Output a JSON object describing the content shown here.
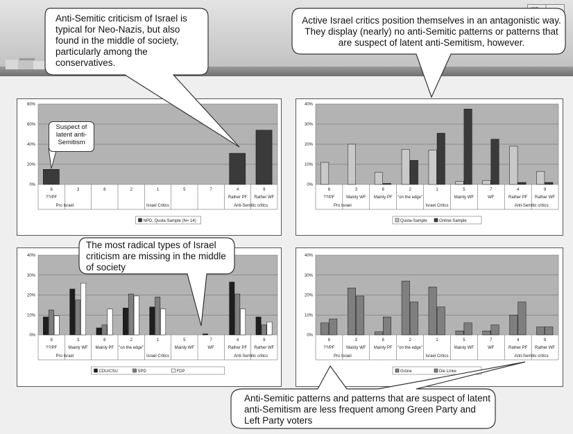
{
  "header": {
    "logo_text": "ISF"
  },
  "bubbles": {
    "b1": "Anti-Semitic criticism of Israel is typical for Neo-Nazis, but also found in the middle of society, particularly among  the conservatives.",
    "b2": "Active Israel critics position themselves in an antagonistic way. They display (nearly) no anti-Semitic patterns or patterns that  are suspect of latent anti-Semitism, however.",
    "b3": "The most radical types of Israel criticism are missing in the middle of society",
    "b4": "Anti-Semitic patterns and patterns that are suspect of latent anti-Semitism are less frequent among Green Party and Left Party voters"
  },
  "note": "Suspect of latent anti-Semitism",
  "colors": {
    "dark": "#3a3a3a",
    "mid": "#7f7f7f",
    "light": "#c9c9c9",
    "white": "#ffffff",
    "plot_bg": "#b3b3b3"
  },
  "chart_data": [
    {
      "type": "bar",
      "categories": [
        "6",
        "3",
        "8",
        "2",
        "1",
        "5",
        "7",
        "4",
        "9"
      ],
      "category_sublabels": [
        "??/PF",
        "",
        "",
        "",
        "",
        "",
        "",
        "Rather PF",
        "Rather WF"
      ],
      "groups": [
        "Pro Israel",
        "Israel Critics",
        "Anti-Semitic critics"
      ],
      "ylim": [
        0,
        80
      ],
      "yticks": [
        "80%",
        "60%",
        "40%",
        "20%",
        "0%"
      ],
      "series": [
        {
          "name": "NPD, Quota Sample (N= 14)",
          "values": [
            15,
            0,
            0,
            0,
            0,
            0,
            0,
            31,
            54
          ],
          "color": "#3a3a3a"
        }
      ]
    },
    {
      "type": "bar",
      "categories": [
        "6",
        "3",
        "8",
        "2",
        "1",
        "5",
        "7",
        "4",
        "9"
      ],
      "category_sublabels": [
        "??/PF",
        "Mainly WF",
        "Mainly PF",
        "\"on the edge\"",
        "",
        "Mainly WF",
        "WF",
        "Rather PF",
        "Rather WF"
      ],
      "groups": [
        "Pro Israel",
        "Israel Critics",
        "Anti-Semitic critics"
      ],
      "ylim": [
        0,
        40
      ],
      "yticks": [
        "40%",
        "30%",
        "20%",
        "10%",
        "0%"
      ],
      "series": [
        {
          "name": "Quota-Sample",
          "values": [
            11,
            20,
            6,
            17.5,
            17,
            1.5,
            2,
            19,
            6.5
          ],
          "color": "#c9c9c9"
        },
        {
          "name": "Online-Sample",
          "values": [
            0,
            0,
            0.5,
            12,
            25.5,
            37.5,
            22.5,
            1,
            1
          ],
          "color": "#3a3a3a"
        }
      ]
    },
    {
      "type": "bar",
      "categories": [
        "6",
        "3",
        "8",
        "2",
        "1",
        "5",
        "7",
        "4",
        "9"
      ],
      "category_sublabels": [
        "??/PF",
        "Mainly WF",
        "Mainly PF",
        "\"on the edge\"",
        "",
        "Mainly WF",
        "WF",
        "Rather PF",
        "Rather WF"
      ],
      "groups": [
        "Pro Israel",
        "Israel Critics",
        "Anti-Semitic critics"
      ],
      "ylim": [
        0,
        40
      ],
      "yticks": [
        "40%",
        "30%",
        "20%",
        "10%",
        "0%"
      ],
      "series": [
        {
          "name": "CDU/CSU",
          "values": [
            9,
            23,
            3.5,
            13.5,
            14,
            0,
            0.5,
            26.5,
            9
          ],
          "color": "#1e1e1e"
        },
        {
          "name": "SPD",
          "values": [
            12.5,
            17.5,
            5,
            20.5,
            19,
            0,
            0,
            20.5,
            5
          ],
          "color": "#7f7f7f"
        },
        {
          "name": "FDP",
          "values": [
            9.5,
            26,
            13,
            19.5,
            13,
            0,
            0,
            13,
            6.5
          ],
          "color": "#ffffff"
        }
      ]
    },
    {
      "type": "bar",
      "categories": [
        "6",
        "3",
        "8",
        "2",
        "1",
        "5",
        "7",
        "4",
        "9"
      ],
      "category_sublabels": [
        "??/PF",
        "Mainly WF",
        "Mainly PF",
        "\"on the edge\"",
        "",
        "Mainly WF",
        "WF",
        "Rather PF",
        "Rather WF"
      ],
      "groups": [
        "Pro Israel",
        "Israel Critics",
        "Anti-Semitic critics"
      ],
      "ylim": [
        0,
        40
      ],
      "yticks": [
        "40%",
        "30%",
        "20%",
        "10%",
        "0%"
      ],
      "series": [
        {
          "name": "Grüne",
          "values": [
            6,
            23.5,
            1.5,
            27,
            24,
            2,
            2,
            10,
            4
          ],
          "color": "#7f7f7f"
        },
        {
          "name": "Die Linke",
          "values": [
            8,
            19.5,
            9,
            16.5,
            14,
            6,
            5,
            16.5,
            4
          ],
          "color": "#7f7f7f"
        }
      ]
    }
  ]
}
